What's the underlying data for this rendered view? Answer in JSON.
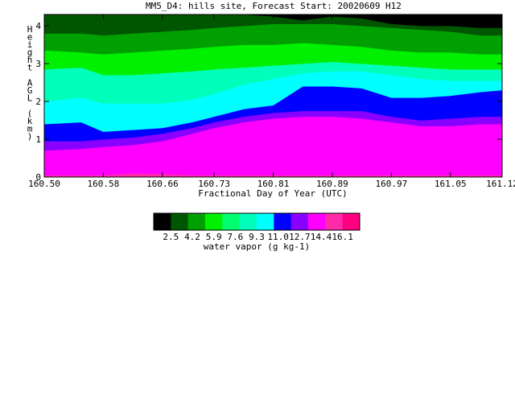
{
  "chart_data": {
    "type": "heatmap",
    "title": "MM5_D4: hills site,  Forecast Start: 20020609 H12",
    "xlabel": "Fractional Day of Year (UTC)",
    "ylabel": "Height AGL (km)",
    "xlim": [
      160.5,
      161.12
    ],
    "ylim": [
      0,
      4.3
    ],
    "x_ticks": [
      "160.50",
      "160.58",
      "160.66",
      "160.73",
      "160.81",
      "160.89",
      "160.97",
      "161.05",
      "161.12"
    ],
    "x_tick_values": [
      160.5,
      160.58,
      160.66,
      160.73,
      160.81,
      160.89,
      160.97,
      161.05,
      161.12
    ],
    "y_ticks": [
      "0",
      "1",
      "2",
      "3",
      "4"
    ],
    "y_tick_values": [
      0,
      1,
      2,
      3,
      4
    ],
    "colorbar": {
      "label": "water vapor (g kg-1)",
      "tick_labels": [
        "2.5",
        "4.2",
        "5.9",
        "7.6",
        "9.3",
        "11.0",
        "12.7",
        "14.4",
        "16.1"
      ],
      "colors": [
        "#000000",
        "#005500",
        "#00a000",
        "#00f000",
        "#00ff70",
        "#00ffbb",
        "#00ffff",
        "#0000ff",
        "#8800ff",
        "#ff00ff",
        "#ff2aaa",
        "#ff0080"
      ]
    },
    "sample_x": [
      160.5,
      160.55,
      160.58,
      160.62,
      160.66,
      160.7,
      160.73,
      160.77,
      160.81,
      160.85,
      160.89,
      160.93,
      160.97,
      161.01,
      161.05,
      161.09,
      161.12
    ],
    "boundaries_km": [
      {
        "level": 16.1,
        "y": [
          0.05,
          0.05,
          0.05,
          0.1,
          0.08,
          0.05,
          0.05,
          0.05,
          0.05,
          0.05,
          0.05,
          0.05,
          0.05,
          0.05,
          0.05,
          0.05,
          0.05
        ]
      },
      {
        "level": 14.4,
        "y": [
          0.7,
          0.75,
          0.8,
          0.85,
          0.95,
          1.15,
          1.3,
          1.45,
          1.55,
          1.6,
          1.6,
          1.55,
          1.45,
          1.35,
          1.35,
          1.4,
          1.4
        ]
      },
      {
        "level": 12.7,
        "y": [
          0.95,
          0.95,
          1.0,
          1.05,
          1.15,
          1.3,
          1.45,
          1.6,
          1.7,
          1.75,
          1.75,
          1.75,
          1.6,
          1.5,
          1.55,
          1.6,
          1.6
        ]
      },
      {
        "level": 11.0,
        "y": [
          1.4,
          1.45,
          1.2,
          1.25,
          1.3,
          1.45,
          1.6,
          1.8,
          1.9,
          2.4,
          2.4,
          2.35,
          2.1,
          2.1,
          2.15,
          2.25,
          2.3
        ]
      },
      {
        "level": 9.3,
        "y": [
          2.0,
          2.1,
          1.95,
          1.95,
          1.95,
          2.05,
          2.2,
          2.45,
          2.6,
          2.75,
          2.8,
          2.8,
          2.7,
          2.6,
          2.55,
          2.55,
          2.55
        ]
      },
      {
        "level": 7.6,
        "y": [
          2.85,
          2.9,
          2.7,
          2.7,
          2.75,
          2.8,
          2.85,
          2.9,
          2.95,
          3.0,
          3.05,
          3.0,
          2.95,
          2.9,
          2.85,
          2.85,
          2.85
        ]
      },
      {
        "level": 5.9,
        "y": [
          3.35,
          3.3,
          3.25,
          3.3,
          3.35,
          3.4,
          3.45,
          3.5,
          3.5,
          3.55,
          3.5,
          3.45,
          3.35,
          3.3,
          3.3,
          3.25,
          3.25
        ]
      },
      {
        "level": 4.2,
        "y": [
          3.8,
          3.8,
          3.75,
          3.8,
          3.85,
          3.9,
          3.95,
          4.0,
          4.05,
          4.05,
          4.05,
          4.0,
          3.95,
          3.9,
          3.85,
          3.75,
          3.75
        ]
      },
      {
        "level": 2.5,
        "y": [
          4.3,
          4.3,
          4.3,
          4.3,
          4.3,
          4.3,
          4.3,
          4.3,
          4.25,
          4.15,
          4.25,
          4.2,
          4.05,
          4.0,
          4.0,
          3.95,
          3.95
        ]
      }
    ],
    "band_colors": [
      "#ff2aaa",
      "#ff00ff",
      "#8800ff",
      "#0000ff",
      "#00ffff",
      "#00ffbb",
      "#00f000",
      "#00a000",
      "#005500",
      "#000000"
    ]
  }
}
